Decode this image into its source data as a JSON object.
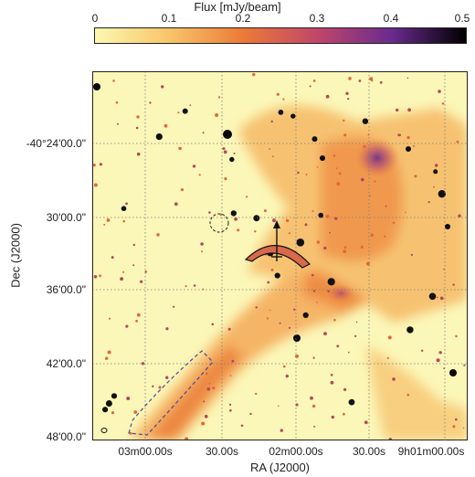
{
  "colorbar": {
    "label": "Flux [mJy/beam]",
    "ticks": [
      "0",
      "0.1",
      "0.2",
      "0.3",
      "0.4",
      "0.5"
    ],
    "range": [
      0,
      0.5
    ],
    "colors": [
      "#fbf8b0",
      "#f9c46a",
      "#ec7a37",
      "#c0466a",
      "#6a2a8e",
      "#000000"
    ]
  },
  "map": {
    "dec_ticks": [
      "-40°24'00.0\"",
      "30'00.0\"",
      "36'00.0\"",
      "42'00.0\"",
      "48'00.0\""
    ],
    "ra_ticks": [
      "03m00.00s",
      "30.00s",
      "02m00.00s",
      "30.00s",
      "9h01m00.00s"
    ],
    "xlabel": "RA (J2000)",
    "ylabel": "Dec (J2000)",
    "background_color": "#fbf7b8",
    "emission_color": "#ef9a4c",
    "peak_color": "#7a3a90"
  }
}
